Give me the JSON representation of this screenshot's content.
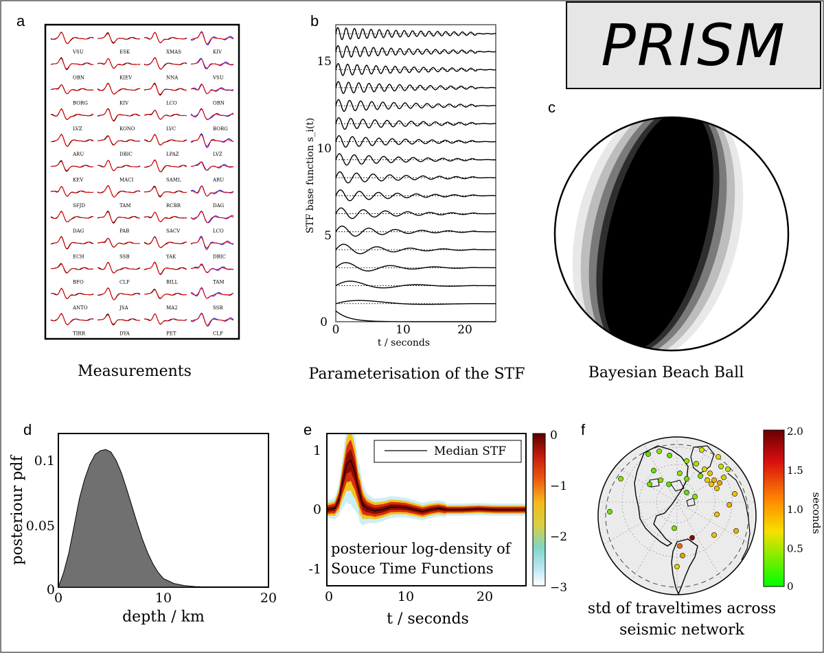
{
  "logo": {
    "text": "PRISM"
  },
  "panel_a": {
    "letter": "a",
    "caption": "Measurements",
    "stations": [
      [
        "VSU",
        "OBN",
        "BORG",
        "LVZ",
        "ARU",
        "KEV",
        "SFJD",
        "DAG",
        "ECH",
        "BFO",
        "ANTO",
        "TIRR"
      ],
      [
        "ESK",
        "KIEV",
        "KIV",
        "KONO",
        "DBIC",
        "MACI",
        "TAM",
        "PAB",
        "SSB",
        "CLF",
        "JSA",
        "DYA"
      ],
      [
        "XMAS",
        "NNA",
        "LCO",
        "LVC",
        "LPAZ",
        "SAML",
        "RCBR",
        "SACV",
        "YAK",
        "BILL",
        "MA2",
        "PET"
      ],
      [
        "KIV",
        "VSU",
        "OBN",
        "BORG",
        "LVZ",
        "ARU",
        "DAG",
        "LCO",
        "DBIC",
        "TAM",
        "SSB",
        "CLF"
      ]
    ],
    "colors": {
      "observed": "#000000",
      "predicted": "#e00000",
      "sh": "#1a1aff"
    }
  },
  "panel_b": {
    "letter": "b",
    "caption": "Parameterisation of the STF",
    "ylabel": "STF base function s_i(t)",
    "xlabel": "t / seconds",
    "xticks": [
      "0",
      "10",
      "20"
    ],
    "yticks": [
      "0",
      "5",
      "10",
      "15"
    ]
  },
  "panel_c": {
    "letter": "c",
    "caption": "Bayesian Beach Ball"
  },
  "panel_d": {
    "letter": "d",
    "ylabel": "posteriour pdf",
    "xlabel": "depth / km",
    "xticks": [
      "0",
      "10",
      "20"
    ],
    "yticks": [
      "0",
      "0.05",
      "0.1"
    ]
  },
  "panel_e": {
    "letter": "e",
    "xlabel": "t / seconds",
    "xticks": [
      "0",
      "10",
      "20"
    ],
    "yticks": [
      "-1",
      "0",
      "1"
    ],
    "legend": "Median STF",
    "annotation_line1": "posteriour log-density of",
    "annotation_line2": "Souce Time Functions",
    "colorbar_ticks": [
      "0",
      "−1",
      "−2",
      "−3"
    ]
  },
  "panel_f": {
    "letter": "f",
    "caption_line1": "std of traveltimes across",
    "caption_line2": "seismic network",
    "colorbar_ticks": [
      "2.0",
      "1.5",
      "1.0",
      "0.5",
      "0"
    ],
    "colorbar_label": "seconds"
  },
  "chart_data": [
    {
      "type": "line",
      "title": "Parameterisation of the STF",
      "xlabel": "t / seconds",
      "ylabel": "STF base function s_i(t)",
      "xlim": [
        0,
        25
      ],
      "ylim": [
        0,
        16.5
      ],
      "n_base_functions": 17,
      "offsets": [
        0,
        1,
        2,
        3,
        4,
        5,
        6,
        7,
        8,
        9,
        10,
        11,
        12,
        13,
        14,
        15,
        16
      ]
    },
    {
      "type": "area",
      "xlabel": "depth / km",
      "ylabel": "posteriour pdf",
      "xlim": [
        0,
        20
      ],
      "ylim": [
        0,
        0.125
      ],
      "x": [
        0,
        0.5,
        1,
        1.5,
        2,
        2.5,
        3,
        3.5,
        4,
        4.5,
        5,
        5.5,
        6,
        6.5,
        7,
        7.5,
        8,
        8.5,
        9,
        9.5,
        10,
        11,
        12,
        13,
        14,
        16,
        18,
        20
      ],
      "y": [
        0,
        0.012,
        0.028,
        0.05,
        0.072,
        0.088,
        0.1,
        0.108,
        0.111,
        0.112,
        0.11,
        0.103,
        0.093,
        0.08,
        0.066,
        0.052,
        0.039,
        0.028,
        0.019,
        0.012,
        0.007,
        0.003,
        0.0012,
        0.0005,
        0.0002,
        0,
        0,
        0
      ]
    },
    {
      "type": "line",
      "xlabel": "t / seconds",
      "xlim": [
        0,
        25
      ],
      "ylim": [
        -1.2,
        1.2
      ],
      "series": [
        {
          "name": "Median STF",
          "x": [
            0,
            1,
            1.5,
            2,
            2.5,
            3,
            3.5,
            4,
            4.5,
            5,
            6,
            7,
            8,
            9,
            10,
            11,
            12,
            13,
            14,
            15,
            17,
            19,
            21,
            23,
            25
          ],
          "y": [
            0,
            0.02,
            0.15,
            0.45,
            0.72,
            0.78,
            0.6,
            0.3,
            0.08,
            0.02,
            -0.02,
            0.0,
            0.04,
            0.04,
            0.03,
            0.0,
            -0.03,
            0.0,
            0.02,
            0.0,
            0.0,
            0.01,
            0.0,
            0.0,
            0.0
          ]
        }
      ],
      "colorbar_range": [
        -3,
        0
      ]
    },
    {
      "type": "scatter",
      "title": "std of traveltimes across seismic network",
      "colorbar_label": "seconds",
      "colorbar_range": [
        0,
        2.0
      ]
    }
  ]
}
